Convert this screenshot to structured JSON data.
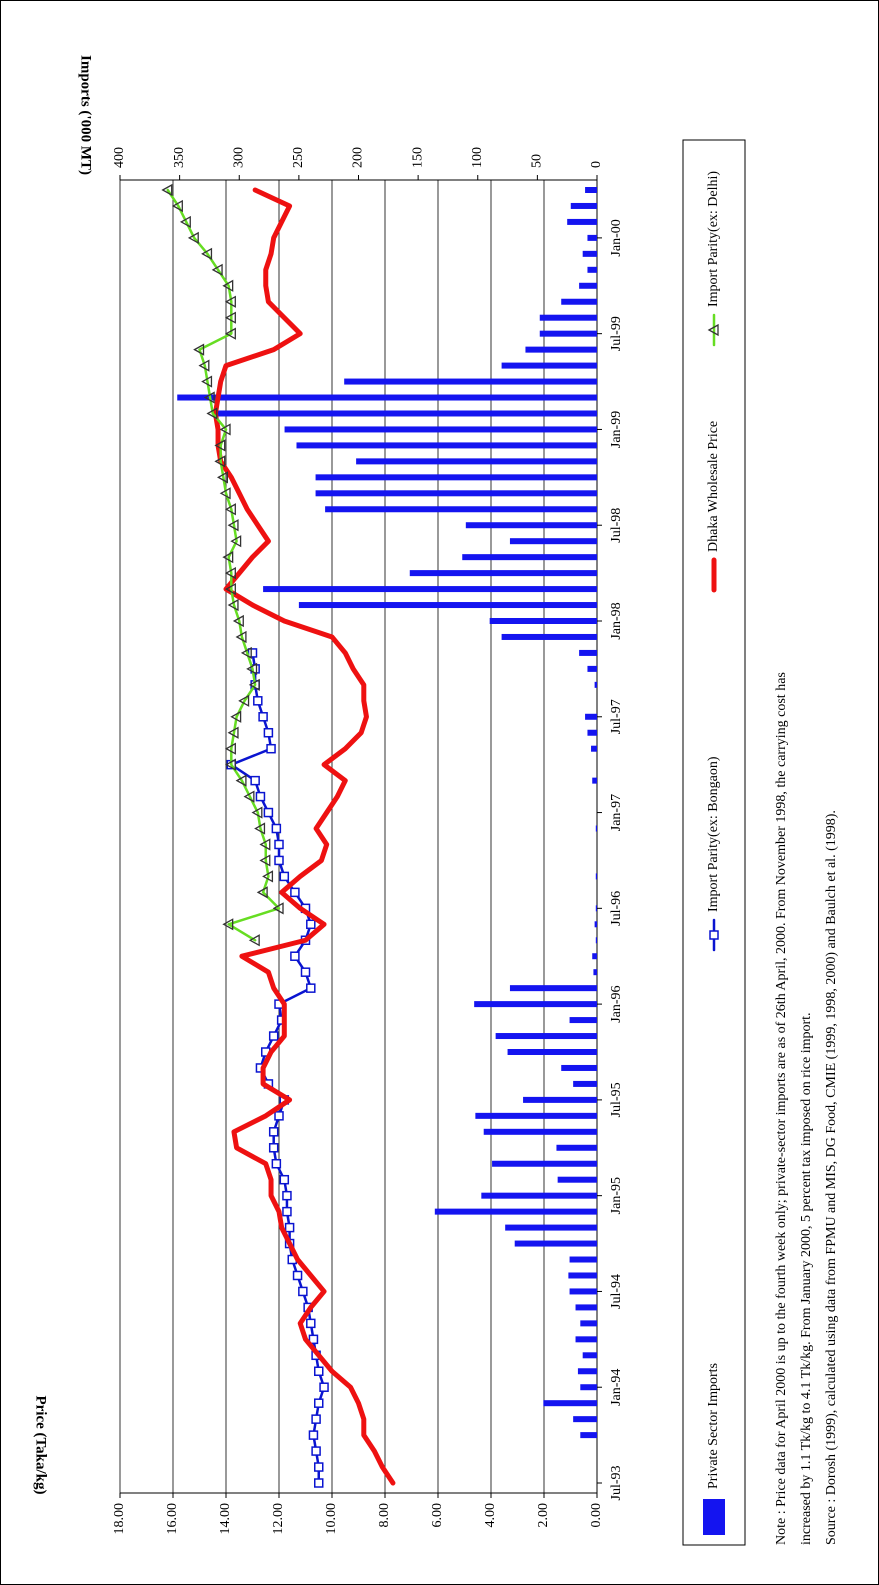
{
  "chart_data": {
    "type": "combo",
    "categories": [
      "Jul-93",
      null,
      null,
      null,
      null,
      null,
      "Jan-94",
      null,
      null,
      null,
      null,
      null,
      "Jul-94",
      null,
      null,
      null,
      null,
      null,
      "Jan-95",
      null,
      null,
      null,
      null,
      null,
      "Jul-95",
      null,
      null,
      null,
      null,
      null,
      "Jan-96",
      null,
      null,
      null,
      null,
      null,
      "Jul-96",
      null,
      null,
      null,
      null,
      null,
      "Jan-97",
      null,
      null,
      null,
      null,
      null,
      "Jul-97",
      null,
      null,
      null,
      null,
      null,
      "Jan-98",
      null,
      null,
      null,
      null,
      null,
      "Jul-98",
      null,
      null,
      null,
      null,
      null,
      "Jan-99",
      null,
      null,
      null,
      null,
      null,
      "Jul-99",
      null,
      null,
      null,
      null,
      null,
      "Jan-00",
      null,
      null,
      null
    ],
    "series": [
      {
        "name": "Private Sector Imports",
        "type": "bar",
        "axis": "y2",
        "color": "#1414f0",
        "values": [
          0,
          0,
          0,
          14,
          20,
          45,
          14,
          16,
          12,
          18,
          14,
          18,
          23,
          24,
          23,
          69,
          77,
          136,
          97,
          33,
          88,
          34,
          95,
          102,
          62,
          20,
          30,
          75,
          85,
          23,
          103,
          73,
          3,
          4,
          1,
          2,
          1,
          0,
          1,
          0,
          0,
          1,
          0,
          0,
          4,
          0,
          5,
          8,
          10,
          0,
          2,
          8,
          15,
          80,
          90,
          250,
          280,
          157,
          113,
          73,
          110,
          228,
          236,
          236,
          202,
          252,
          262,
          320,
          352,
          212,
          80,
          60,
          48,
          48,
          30,
          15,
          8,
          12,
          8,
          25,
          22,
          10
        ]
      },
      {
        "name": "Import Parity(ex: Bongaon)",
        "type": "line",
        "color": "#0a14d0",
        "marker": "square",
        "values": [
          10.5,
          10.5,
          10.6,
          10.7,
          10.6,
          10.5,
          10.3,
          10.5,
          10.6,
          10.7,
          10.8,
          10.9,
          11.1,
          11.3,
          11.5,
          11.6,
          11.6,
          11.7,
          11.7,
          11.8,
          12.1,
          12.2,
          12.2,
          12.0,
          11.8,
          12.4,
          12.7,
          12.5,
          12.2,
          11.9,
          12.0,
          10.8,
          11.0,
          11.4,
          11.0,
          10.8,
          11.0,
          11.4,
          11.8,
          12.0,
          12.0,
          12.1,
          12.4,
          12.7,
          12.9,
          13.8,
          12.3,
          12.4,
          12.6,
          12.8,
          12.9,
          12.9,
          13.0,
          null,
          null,
          null,
          null,
          null,
          null,
          null,
          null,
          null,
          null,
          null,
          null,
          null,
          null,
          null,
          null,
          null,
          null,
          null,
          null,
          null,
          null,
          null,
          null,
          null,
          null,
          null,
          null,
          null
        ]
      },
      {
        "name": "Dhaka Wholesale Price",
        "type": "line",
        "color": "#ee1111",
        "marker": "none",
        "values": [
          7.7,
          8.1,
          8.4,
          8.8,
          8.8,
          9.0,
          9.3,
          10.0,
          10.5,
          11.0,
          11.2,
          10.8,
          10.3,
          10.8,
          11.3,
          11.6,
          11.9,
          12.0,
          12.3,
          12.3,
          12.5,
          13.6,
          13.7,
          12.5,
          11.6,
          12.6,
          12.6,
          12.3,
          11.8,
          11.8,
          11.8,
          12.2,
          12.4,
          13.4,
          11.0,
          10.3,
          11.2,
          11.9,
          11.2,
          10.4,
          10.2,
          10.6,
          10.2,
          9.8,
          9.5,
          10.3,
          9.5,
          8.9,
          8.7,
          8.8,
          8.8,
          9.2,
          9.5,
          10.0,
          11.8,
          13.0,
          14.0,
          13.5,
          13.0,
          12.4,
          12.8,
          13.2,
          13.5,
          13.8,
          14.2,
          14.3,
          14.3,
          14.4,
          14.3,
          14.2,
          14.0,
          12.2,
          11.2,
          11.8,
          12.4,
          12.5,
          12.5,
          12.3,
          12.2,
          11.9,
          11.6,
          12.9
        ]
      },
      {
        "name": "Import Parity(ex: Delhi)",
        "type": "line",
        "color": "#66dd22",
        "marker": "triangle",
        "values": [
          null,
          null,
          null,
          null,
          null,
          null,
          null,
          null,
          null,
          null,
          null,
          null,
          null,
          null,
          null,
          null,
          null,
          null,
          null,
          null,
          null,
          null,
          null,
          null,
          null,
          null,
          null,
          null,
          null,
          null,
          null,
          null,
          null,
          null,
          12.9,
          13.9,
          12.0,
          12.6,
          12.4,
          12.5,
          12.5,
          12.7,
          12.8,
          13.1,
          13.4,
          13.8,
          13.8,
          13.7,
          13.6,
          13.3,
          12.9,
          13.0,
          13.2,
          13.4,
          13.5,
          13.7,
          13.8,
          13.8,
          13.9,
          13.6,
          13.7,
          13.8,
          14.0,
          14.1,
          14.2,
          14.2,
          14.0,
          14.5,
          14.6,
          14.7,
          14.8,
          15.0,
          13.8,
          13.8,
          13.8,
          13.9,
          14.3,
          14.7,
          15.2,
          15.5,
          15.8,
          16.2
        ]
      }
    ],
    "y_label": "Price (Taka/kg)",
    "y2_label": "Imports ('000 MT)",
    "ylim": [
      0,
      18
    ],
    "yticks": [
      {
        "value": 0,
        "label": "0.00"
      },
      {
        "value": 2,
        "label": "2.00"
      },
      {
        "value": 4,
        "label": "4.00"
      },
      {
        "value": 6,
        "label": "6.00"
      },
      {
        "value": 8,
        "label": "8.00"
      },
      {
        "value": 10,
        "label": "10.00"
      },
      {
        "value": 12,
        "label": "12.00"
      },
      {
        "value": 14,
        "label": "14.00"
      },
      {
        "value": 16,
        "label": "16.00"
      },
      {
        "value": 18,
        "label": "18.00"
      }
    ],
    "y2lim": [
      0,
      400
    ],
    "y2ticks": [
      0,
      50,
      100,
      150,
      200,
      250,
      300,
      350,
      400
    ],
    "grid": true,
    "legend": "bottom",
    "notes": [
      "Note : Price data for April 2000 is up to the fourth week only; private-sector imports are as of 26th April, 2000.  From November 1998, the carrying cost has",
      "increased by 1.1 Tk/kg to 4.1 Tk/kg.  From January 2000, 5 percent tax imposed on rice import.",
      "Source : Dorosh (1999), calculated using data from FPMU and MIS, DG Food, CMIE (1999, 1998, 2000) and Baulch et al. (1998)."
    ]
  }
}
